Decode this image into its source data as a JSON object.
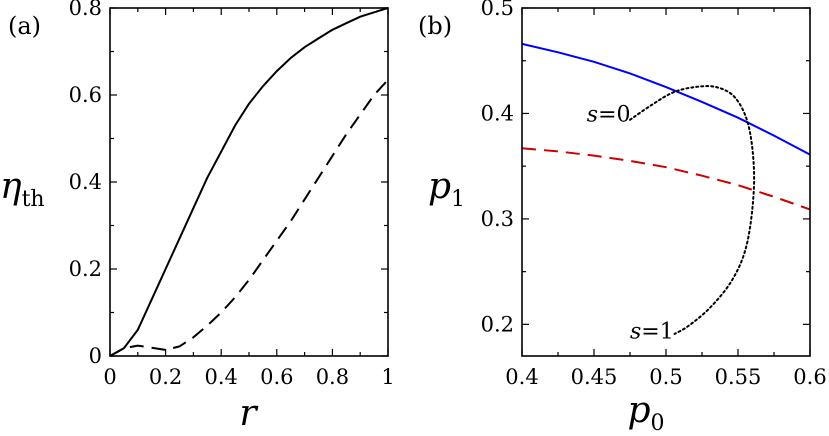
{
  "chart_data": [
    {
      "panel": "(a)",
      "type": "line",
      "xlabel": "r",
      "ylabel_main": "η",
      "ylabel_sub": "th",
      "xlim": [
        0,
        1
      ],
      "ylim": [
        0,
        0.8
      ],
      "xticks": [
        "0",
        "0.2",
        "0.4",
        "0.6",
        "0.8",
        "1"
      ],
      "yticks": [
        "0",
        "0.2",
        "0.4",
        "0.6",
        "0.8"
      ],
      "grid": false,
      "series": [
        {
          "style": "solid",
          "color": "#000000",
          "x": [
            0,
            0.05,
            0.1,
            0.15,
            0.2,
            0.25,
            0.3,
            0.35,
            0.4,
            0.45,
            0.5,
            0.55,
            0.6,
            0.65,
            0.7,
            0.75,
            0.8,
            0.85,
            0.9,
            0.95,
            1.0
          ],
          "y": [
            0,
            0.018,
            0.06,
            0.13,
            0.2,
            0.27,
            0.34,
            0.41,
            0.47,
            0.53,
            0.58,
            0.62,
            0.655,
            0.685,
            0.71,
            0.73,
            0.75,
            0.765,
            0.78,
            0.79,
            0.8
          ]
        },
        {
          "style": "dashed",
          "color": "#000000",
          "x": [
            0,
            0.05,
            0.1,
            0.15,
            0.2,
            0.25,
            0.3,
            0.35,
            0.4,
            0.45,
            0.5,
            0.55,
            0.6,
            0.65,
            0.7,
            0.75,
            0.8,
            0.85,
            0.9,
            0.95,
            1.0
          ],
          "y": [
            0,
            0.018,
            0.024,
            0.019,
            0.014,
            0.022,
            0.043,
            0.07,
            0.1,
            0.135,
            0.175,
            0.22,
            0.265,
            0.31,
            0.36,
            0.41,
            0.46,
            0.51,
            0.555,
            0.6,
            0.635
          ]
        }
      ]
    },
    {
      "panel": "(b)",
      "type": "line",
      "xlabel_main": "p",
      "xlabel_sub": "0",
      "ylabel_main": "p",
      "ylabel_sub": "1",
      "xlim": [
        0.4,
        0.6
      ],
      "ylim": [
        0.17,
        0.5
      ],
      "xticks": [
        0.4,
        0.45,
        0.5,
        0.55,
        0.6
      ],
      "xtick_labels": [
        "0.4",
        "0.45",
        "0.5",
        "0.55",
        "0.6"
      ],
      "yticks": [
        0.2,
        0.3,
        0.4,
        0.5
      ],
      "ytick_labels": [
        "0.2",
        "0.3",
        "0.4",
        "0.5"
      ],
      "grid": false,
      "series": [
        {
          "style": "solid",
          "color": "#0000ff",
          "x": [
            0.4,
            0.425,
            0.45,
            0.475,
            0.5,
            0.525,
            0.55,
            0.575,
            0.6
          ],
          "y": [
            0.466,
            0.458,
            0.449,
            0.438,
            0.425,
            0.411,
            0.396,
            0.379,
            0.361
          ]
        },
        {
          "style": "dashed",
          "color": "#cc0000",
          "x": [
            0.4,
            0.425,
            0.45,
            0.475,
            0.5,
            0.525,
            0.55,
            0.575,
            0.6
          ],
          "y": [
            0.367,
            0.364,
            0.36,
            0.355,
            0.349,
            0.341,
            0.332,
            0.321,
            0.309
          ]
        },
        {
          "style": "dotted",
          "color": "#000000",
          "x": [
            0.475,
            0.49,
            0.505,
            0.52,
            0.535,
            0.548,
            0.557,
            0.561,
            0.56,
            0.555,
            0.545,
            0.53,
            0.515,
            0.506
          ],
          "y": [
            0.394,
            0.408,
            0.42,
            0.425,
            0.425,
            0.415,
            0.39,
            0.35,
            0.31,
            0.27,
            0.24,
            0.215,
            0.198,
            0.191
          ]
        }
      ],
      "annotations": [
        {
          "var": "s",
          "eq": "=",
          "val": "0",
          "x": 0.445,
          "y": 0.4
        },
        {
          "var": "s",
          "eq": "=",
          "val": "1",
          "x": 0.475,
          "y": 0.194
        }
      ]
    }
  ]
}
